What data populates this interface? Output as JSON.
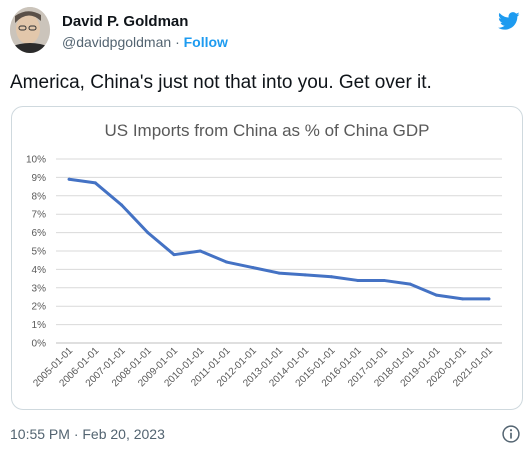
{
  "author": {
    "name": "David P. Goldman",
    "handle": "@davidpgoldman",
    "separator": "·",
    "follow_label": "Follow"
  },
  "tweet": {
    "text": "America, China's just not that into you. Get over it.",
    "timestamp": "10:55 PM · Feb 20, 2023"
  },
  "icons": {
    "logo": "twitter-bird-icon",
    "info": "info-icon"
  },
  "colors": {
    "accent": "#1d9bf0",
    "line": "#4472c4"
  },
  "chart_data": {
    "type": "line",
    "title": "US Imports from China as % of China GDP",
    "xlabel": "",
    "ylabel": "",
    "ylim": [
      0,
      10
    ],
    "yticks": [
      "0%",
      "1%",
      "2%",
      "3%",
      "4%",
      "5%",
      "6%",
      "7%",
      "8%",
      "9%",
      "10%"
    ],
    "grid": true,
    "legend": "none",
    "categories": [
      "2005-01-01",
      "2006-01-01",
      "2007-01-01",
      "2008-01-01",
      "2009-01-01",
      "2010-01-01",
      "2011-01-01",
      "2012-01-01",
      "2013-01-01",
      "2014-01-01",
      "2015-01-01",
      "2016-01-01",
      "2017-01-01",
      "2018-01-01",
      "2019-01-01",
      "2020-01-01",
      "2021-01-01"
    ],
    "values": [
      8.9,
      8.7,
      7.5,
      6.0,
      4.8,
      5.0,
      4.4,
      4.1,
      3.8,
      3.7,
      3.6,
      3.4,
      3.4,
      3.2,
      2.6,
      2.4,
      2.4
    ]
  }
}
